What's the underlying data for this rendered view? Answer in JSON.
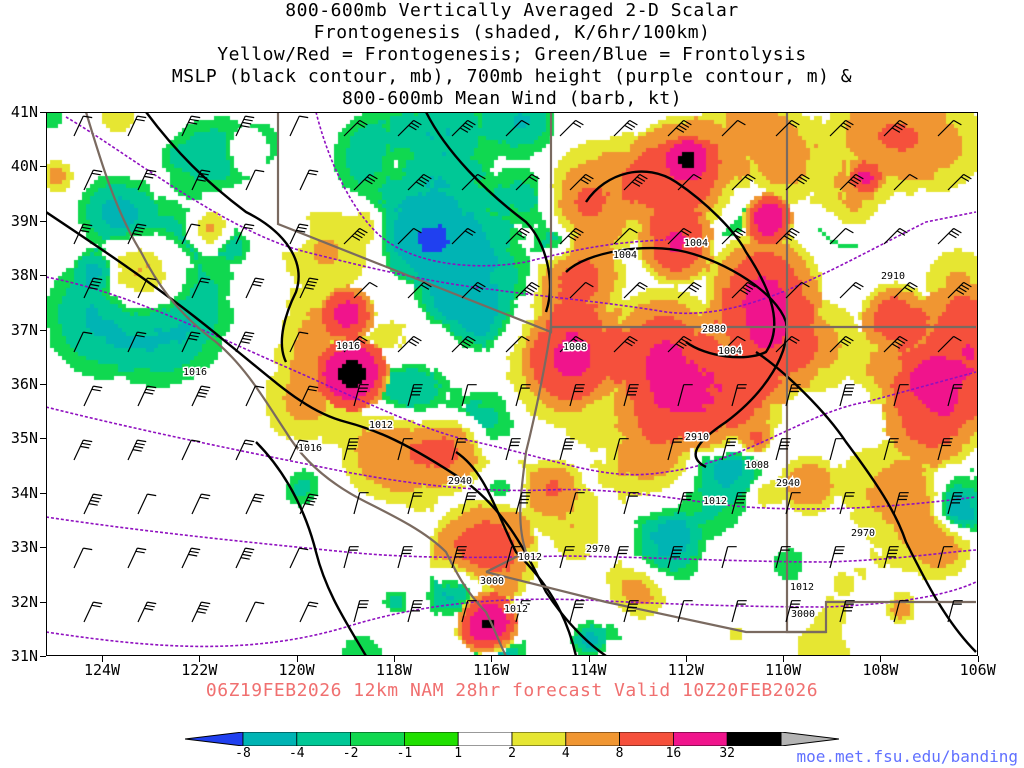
{
  "title_lines": [
    "800-600mb Vertically Averaged 2-D Scalar",
    "Frontogenesis (shaded, K/6hr/100km)",
    "Yellow/Red = Frontogenesis;  Green/Blue = Frontolysis",
    "MSLP (black contour, mb), 700mb height (purple contour, m) &",
    "800-600mb Mean Wind (barb, kt)"
  ],
  "lat_labels": [
    "41N",
    "40N",
    "39N",
    "38N",
    "37N",
    "36N",
    "35N",
    "34N",
    "33N",
    "32N",
    "31N"
  ],
  "lon_labels": [
    "124W",
    "122W",
    "120W",
    "118W",
    "116W",
    "114W",
    "112W",
    "110W",
    "108W",
    "106W"
  ],
  "valid_text": "06Z19FEB2026 12km NAM 28hr forecast Valid 10Z20FEB2026",
  "colorbar": {
    "labels": [
      "-8",
      "-4",
      "-2",
      "-1",
      "1",
      "2",
      "4",
      "8",
      "16",
      "32"
    ],
    "colors": [
      "#2040f0",
      "#00b4b4",
      "#00c896",
      "#10d850",
      "#20e000",
      "#ffffff",
      "#e6e632",
      "#f09632",
      "#f5503c",
      "#f0148c",
      "#000000",
      "#b4b4b4"
    ]
  },
  "mslp_labels": [
    "1004",
    "1004",
    "1008",
    "1004",
    "1016",
    "1016",
    "1016",
    "1012",
    "1008",
    "1012",
    "1012",
    "1012",
    "1012"
  ],
  "height_labels": [
    "2910",
    "2880",
    "2910",
    "2940",
    "2940",
    "2970",
    "2970",
    "3000",
    "3000"
  ],
  "colors": {
    "mslp": "#000000",
    "height": "#9010c0",
    "borders": "#7a6a60",
    "valid_text": "#f07070",
    "credit": "#6070ff"
  },
  "credit": "moe.met.fsu.edu/banding"
}
